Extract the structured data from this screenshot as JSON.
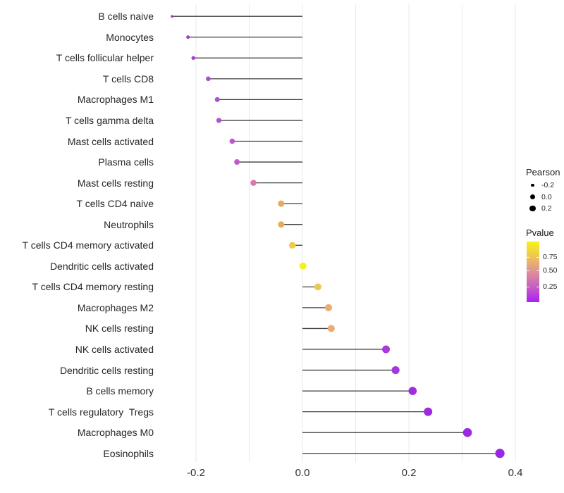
{
  "chart_data": {
    "type": "lollipop",
    "title": "",
    "xlabel": "",
    "ylabel": "",
    "categories": [
      "B cells naive",
      "Monocytes",
      "T cells follicular helper",
      "T cells CD8",
      "Macrophages M1",
      "T cells gamma delta",
      "Mast cells activated",
      "Plasma cells",
      "Mast cells resting",
      "T cells CD4 naive",
      "Neutrophils",
      "T cells CD4 memory activated",
      "Dendritic cells activated",
      "T cells CD4 memory resting",
      "Macrophages M2",
      "NK cells resting",
      "NK cells activated",
      "Dendritic cells resting",
      "B cells memory",
      "T cells regulatory  Tregs",
      "Macrophages M0",
      "Eosinophils"
    ],
    "series": [
      {
        "name": "Pearson",
        "values": [
          -0.245,
          -0.215,
          -0.205,
          -0.177,
          -0.16,
          -0.157,
          -0.132,
          -0.123,
          -0.092,
          -0.04,
          -0.04,
          -0.019,
          0.001,
          0.029,
          0.049,
          0.054,
          0.157,
          0.175,
          0.207,
          0.236,
          0.31,
          0.371
        ]
      }
    ],
    "point_colors": [
      "#9232D2",
      "#9C3BD2",
      "#A040D4",
      "#AB4CD2",
      "#B051D0",
      "#B253CE",
      "#BB57C8",
      "#C05CC6",
      "#D97BA8",
      "#E5AC5C",
      "#E5AC5C",
      "#F0CC40",
      "#F5F118",
      "#EEC84E",
      "#EBAE72",
      "#EBAE72",
      "#A63ADC",
      "#A336DE",
      "#9D2FE0",
      "#9C2CE0",
      "#9A2AE1",
      "#9829E2"
    ],
    "point_radii": [
      1.8,
      2.5,
      2.7,
      3.3,
      3.5,
      3.6,
      3.8,
      4.0,
      4.3,
      4.5,
      4.5,
      4.7,
      5.0,
      5.0,
      5.1,
      5.1,
      5.5,
      5.6,
      5.8,
      6.0,
      6.3,
      6.6
    ],
    "x_ticks": [
      "-0.2",
      "0.0",
      "0.2",
      "0.4"
    ],
    "x_tick_values": [
      -0.2,
      0.0,
      0.2,
      0.4
    ],
    "grid_values": [
      -0.2,
      -0.1,
      0.0,
      0.1,
      0.2,
      0.3,
      0.4
    ],
    "xlim": [
      -0.27,
      0.45
    ],
    "baseline": 0.0,
    "grid_on": true,
    "stem_color": "#3f3f3f",
    "grid_color": "#e9e9e9",
    "legend_position": "right"
  },
  "legend": {
    "size": {
      "title": "Pearson",
      "dot_color": "#000000",
      "items": [
        {
          "label": "-0.2",
          "r": 2.3
        },
        {
          "label": "0.0",
          "r": 3.6
        },
        {
          "label": "0.2",
          "r": 4.4
        }
      ]
    },
    "color": {
      "title": "Pvalue",
      "gradient_top_to_bottom": [
        "#F6F21A",
        "#EFC457",
        "#DE8F9A",
        "#C75FC2",
        "#A81EF7"
      ],
      "ticks": [
        {
          "label": "0.75"
        },
        {
          "label": "0.50"
        },
        {
          "label": "0.25"
        }
      ]
    }
  }
}
